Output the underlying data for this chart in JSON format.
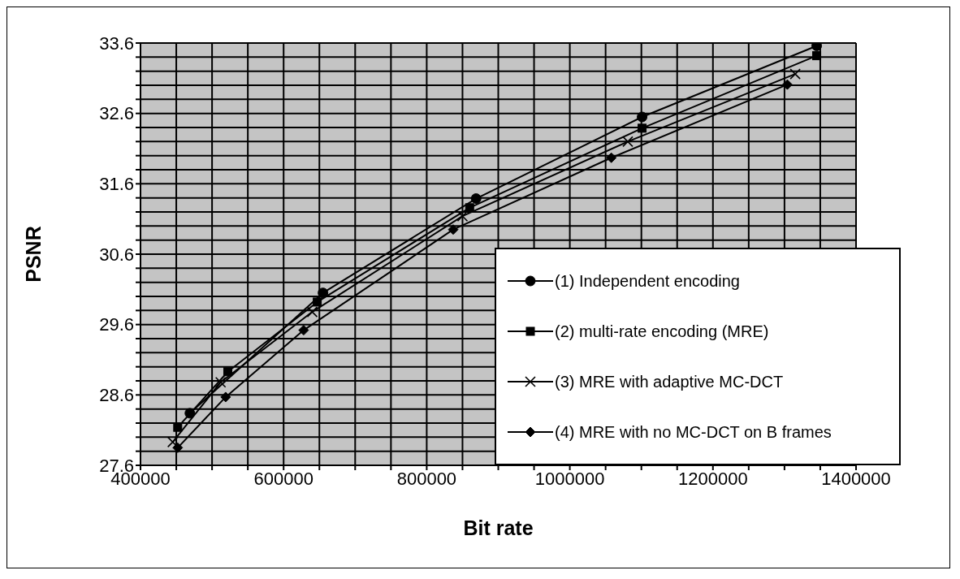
{
  "chart_data": {
    "type": "line",
    "xlabel": "Bit rate",
    "ylabel": "PSNR",
    "xlim": [
      400000,
      1400000
    ],
    "xticks": [
      400000,
      {
        "value": 450000,
        "label": null
      },
      {
        "value": 500000,
        "label": null
      },
      {
        "value": 550000,
        "label": null
      },
      600000,
      {
        "value": 650000,
        "label": null
      },
      {
        "value": 700000,
        "label": null
      },
      {
        "value": 750000,
        "label": null
      },
      800000,
      {
        "value": 850000,
        "label": null
      },
      {
        "value": 900000,
        "label": null
      },
      {
        "value": 950000,
        "label": null
      },
      1000000,
      {
        "value": 1050000,
        "label": null
      },
      {
        "value": 1100000,
        "label": null
      },
      {
        "value": 1150000,
        "label": null
      },
      1200000,
      {
        "value": 1250000,
        "label": null
      },
      {
        "value": 1300000,
        "label": null
      },
      {
        "value": 1350000,
        "label": null
      },
      1400000
    ],
    "ylim": [
      27.6,
      33.6
    ],
    "yticks": [
      27.6,
      {
        "value": 27.8,
        "label": null
      },
      {
        "value": 28.0,
        "label": null
      },
      {
        "value": 28.2,
        "label": null
      },
      {
        "value": 28.4,
        "label": null
      },
      28.6,
      {
        "value": 28.8,
        "label": null
      },
      {
        "value": 29.0,
        "label": null
      },
      {
        "value": 29.2,
        "label": null
      },
      {
        "value": 29.4,
        "label": null
      },
      29.6,
      {
        "value": 29.8,
        "label": null
      },
      {
        "value": 30.0,
        "label": null
      },
      {
        "value": 30.2,
        "label": null
      },
      {
        "value": 30.4,
        "label": null
      },
      30.6,
      {
        "value": 30.8,
        "label": null
      },
      {
        "value": 31.0,
        "label": null
      },
      {
        "value": 31.2,
        "label": null
      },
      {
        "value": 31.4,
        "label": null
      },
      31.6,
      {
        "value": 31.8,
        "label": null
      },
      {
        "value": 32.0,
        "label": null
      },
      {
        "value": 32.2,
        "label": null
      },
      {
        "value": 32.4,
        "label": null
      },
      32.6,
      {
        "value": 32.8,
        "label": null
      },
      {
        "value": 33.0,
        "label": null
      },
      {
        "value": 33.2,
        "label": null
      },
      {
        "value": 33.4,
        "label": null
      },
      33.6
    ],
    "grid": true,
    "legend": "bottom right",
    "line_style": "solid",
    "series": [
      {
        "name": "(1) Independent encoding",
        "color": "#000000",
        "marker": "circle",
        "x": [
          469000,
          655000,
          869000,
          1101000,
          1345000
        ],
        "values": [
          28.34,
          30.05,
          31.39,
          32.55,
          33.56
        ]
      },
      {
        "name": "(2) multi-rate encoding (MRE)",
        "color": "#000000",
        "marker": "square",
        "x": [
          452000,
          522000,
          647000,
          860000,
          1101000,
          1345000
        ],
        "values": [
          28.14,
          28.93,
          29.92,
          31.26,
          32.39,
          33.42
        ]
      },
      {
        "name": "(3) MRE with adaptive MC-DCT",
        "color": "#000000",
        "marker": "cross",
        "x": [
          445000,
          512000,
          640000,
          850000,
          1081000,
          1315000
        ],
        "values": [
          27.93,
          28.78,
          29.78,
          31.14,
          32.2,
          33.16
        ]
      },
      {
        "name": "(4) MRE with no MC-DCT on B frames",
        "color": "#000000",
        "marker": "diamond",
        "x": [
          452000,
          519000,
          628000,
          837000,
          1058000,
          1304000
        ],
        "values": [
          27.85,
          28.57,
          29.52,
          30.95,
          31.97,
          33.01
        ]
      }
    ]
  }
}
